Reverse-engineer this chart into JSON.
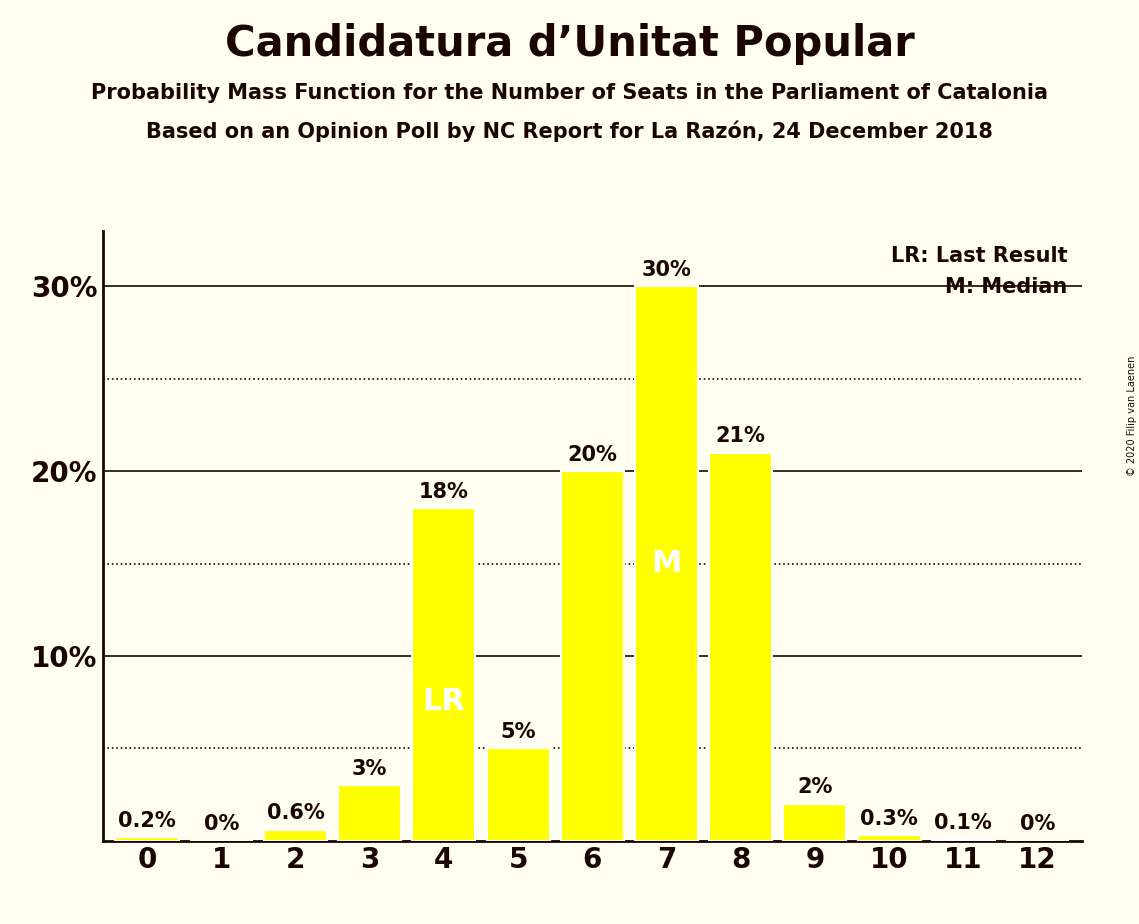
{
  "title": "Candidatura d’Unitat Popular",
  "subtitle1": "Probability Mass Function for the Number of Seats in the Parliament of Catalonia",
  "subtitle2": "Based on an Opinion Poll by NC Report for La Razón, 24 December 2018",
  "copyright": "© 2020 Filip van Laenen",
  "categories": [
    0,
    1,
    2,
    3,
    4,
    5,
    6,
    7,
    8,
    9,
    10,
    11,
    12
  ],
  "values": [
    0.2,
    0.0,
    0.6,
    3.0,
    18.0,
    5.0,
    20.0,
    30.0,
    21.0,
    2.0,
    0.3,
    0.1,
    0.0
  ],
  "bar_color": "#FFFF00",
  "bar_edge_color": "#FFFFFF",
  "background_color": "#FFFEF0",
  "text_color": "#1a0500",
  "lr_bar": 4,
  "median_bar": 7,
  "lr_label": "LR",
  "median_label": "M",
  "legend_lr": "LR: Last Result",
  "legend_m": "M: Median",
  "ylim": [
    0,
    33
  ],
  "solid_grid_levels": [
    10,
    20,
    30
  ],
  "dotted_grid_levels": [
    5,
    15,
    25
  ],
  "yticks": [
    10,
    20,
    30
  ],
  "ytick_labels": [
    "10%",
    "20%",
    "30%"
  ],
  "grid_color": "#1a0500",
  "value_labels": [
    "0.2%",
    "0%",
    "0.6%",
    "3%",
    "18%",
    "5%",
    "20%",
    "30%",
    "21%",
    "2%",
    "0.3%",
    "0.1%",
    "0%"
  ],
  "title_fontsize": 30,
  "subtitle_fontsize": 15,
  "ytick_fontsize": 20,
  "xtick_fontsize": 20,
  "label_fontsize": 15,
  "legend_fontsize": 15,
  "lr_inside_fontsize": 22,
  "m_inside_fontsize": 22
}
